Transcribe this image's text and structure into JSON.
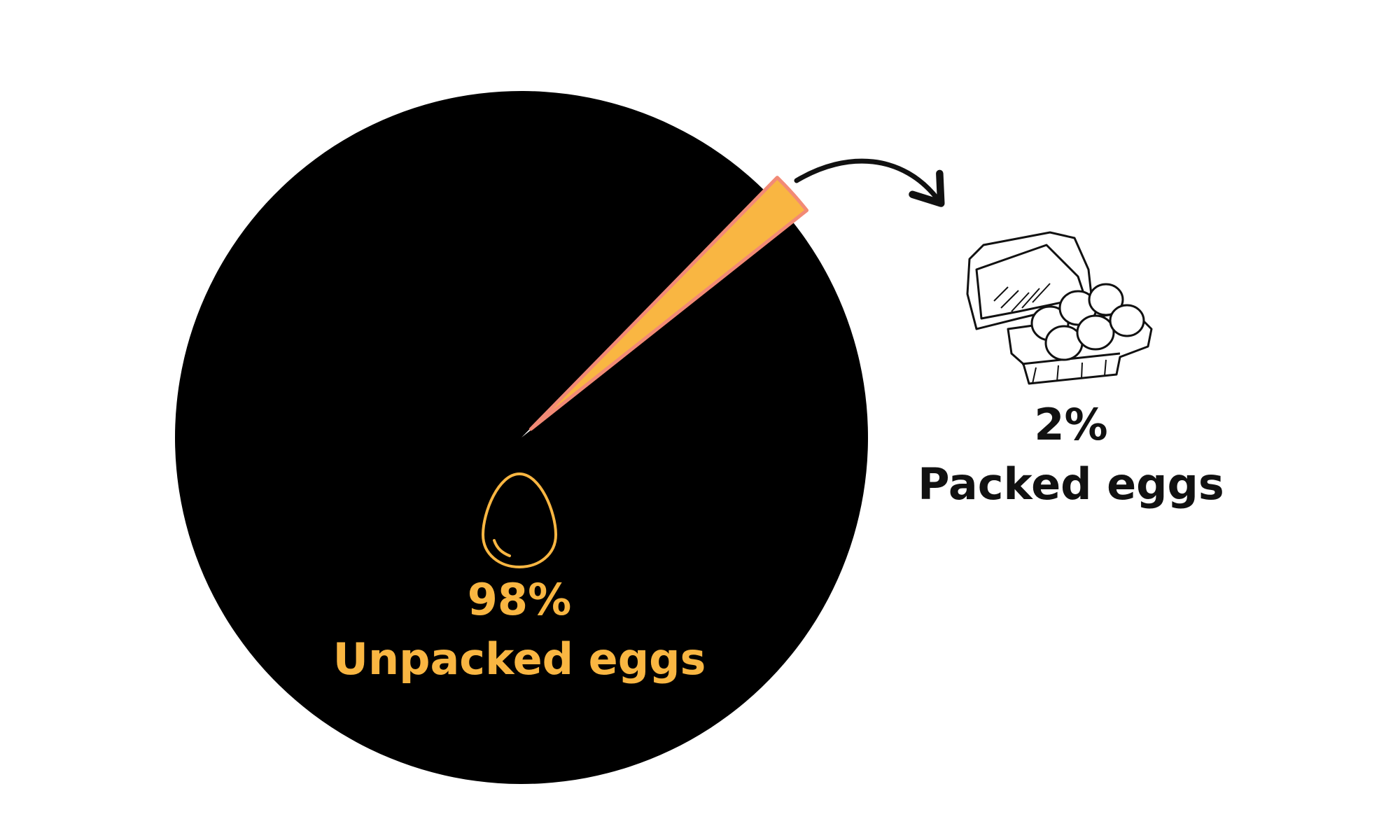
{
  "chart_data": {
    "type": "pie",
    "slices": [
      {
        "label": "Unpacked eggs",
        "value": 98,
        "value_label": "98%",
        "color": "#000000",
        "label_color": "#F9B642"
      },
      {
        "label": "Packed eggs",
        "value": 2,
        "value_label": "2%",
        "color": "#F9B642",
        "label_color": "#111111"
      }
    ],
    "highlight_outline_color": "#F28A76",
    "icons": [
      "egg-icon",
      "egg-carton-icon",
      "curved-arrow-icon"
    ]
  }
}
